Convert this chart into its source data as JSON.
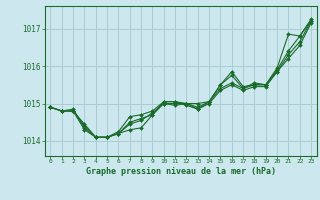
{
  "title": "Graphe pression niveau de la mer (hPa)",
  "background_color": "#cce8ee",
  "grid_color": "#aaccd4",
  "line_color": "#1a6b2a",
  "x_ticks": [
    0,
    1,
    2,
    3,
    4,
    5,
    6,
    7,
    8,
    9,
    10,
    11,
    12,
    13,
    14,
    15,
    16,
    17,
    18,
    19,
    20,
    21,
    22,
    23
  ],
  "ylim": [
    1013.6,
    1017.6
  ],
  "yticks": [
    1014,
    1015,
    1016,
    1017
  ],
  "lines": [
    [
      1014.9,
      1014.8,
      1014.8,
      1014.4,
      1014.1,
      1014.1,
      1014.2,
      1014.5,
      1014.6,
      1014.7,
      1015.0,
      1015.0,
      1015.0,
      1014.9,
      1015.05,
      1015.4,
      1015.55,
      1015.4,
      1015.5,
      1015.5,
      1015.9,
      1016.4,
      1016.8,
      1017.25
    ],
    [
      1014.9,
      1014.8,
      1014.85,
      1014.35,
      1014.1,
      1014.1,
      1014.25,
      1014.65,
      1014.7,
      1014.8,
      1015.05,
      1015.05,
      1014.95,
      1014.85,
      1015.05,
      1015.5,
      1015.75,
      1015.4,
      1015.55,
      1015.5,
      1015.85,
      1016.3,
      1016.65,
      1017.2
    ],
    [
      1014.9,
      1014.8,
      1014.8,
      1014.3,
      1014.1,
      1014.1,
      1014.2,
      1014.3,
      1014.35,
      1014.7,
      1015.05,
      1015.05,
      1015.0,
      1015.0,
      1015.05,
      1015.5,
      1015.85,
      1015.45,
      1015.5,
      1015.5,
      1015.95,
      1016.85,
      1016.8,
      1017.2
    ],
    [
      1014.9,
      1014.8,
      1014.8,
      1014.45,
      1014.1,
      1014.1,
      1014.2,
      1014.45,
      1014.55,
      1014.75,
      1015.0,
      1014.95,
      1015.0,
      1014.85,
      1015.0,
      1015.35,
      1015.5,
      1015.35,
      1015.45,
      1015.45,
      1015.85,
      1016.2,
      1016.55,
      1017.15
    ]
  ],
  "figsize": [
    3.2,
    2.0
  ],
  "dpi": 100
}
